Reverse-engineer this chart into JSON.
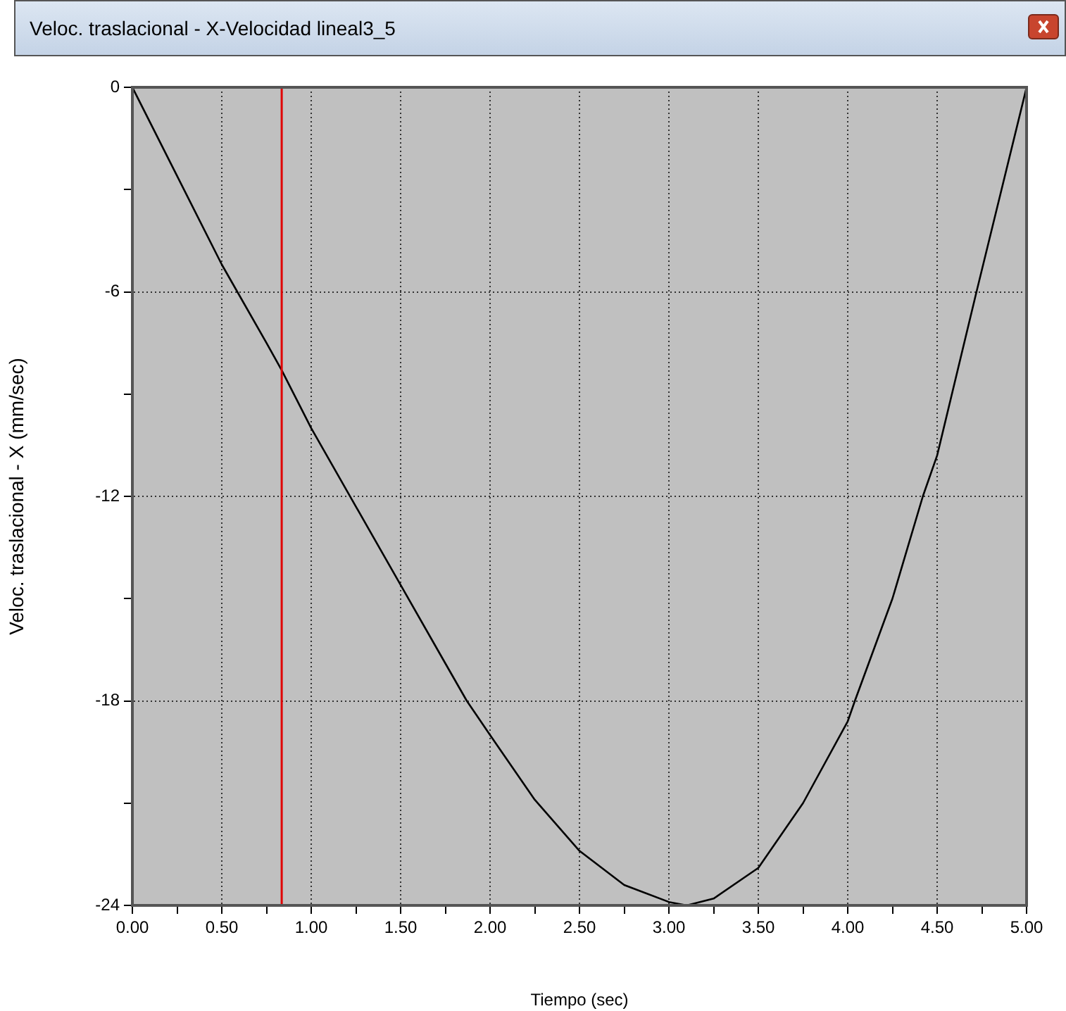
{
  "chart_data": {
    "type": "line",
    "title": "Veloc. traslacional - X-Velocidad lineal3_5",
    "xlabel": "Tiempo (sec)",
    "ylabel": "Veloc. traslacional - X (mm/sec)",
    "x": [
      0,
      0.25,
      0.5,
      0.75,
      0.835,
      1.0,
      1.25,
      1.5,
      1.75,
      1.87,
      2.0,
      2.25,
      2.5,
      2.75,
      3.0,
      3.1,
      3.25,
      3.5,
      3.75,
      4.0,
      4.04,
      4.25,
      4.42,
      4.5,
      4.72,
      5.0
    ],
    "series": [
      {
        "color": "#000000",
        "values": [
          0,
          -2.6,
          -5.2,
          -7.5,
          -8.3,
          -10.0,
          -12.3,
          -14.6,
          -16.9,
          -18,
          -19.0,
          -20.9,
          -22.4,
          -23.4,
          -23.9,
          -24,
          -23.8,
          -22.9,
          -21.0,
          -18.6,
          -18,
          -15.0,
          -12,
          -10.8,
          -6,
          0
        ]
      }
    ],
    "xlim": [
      0,
      5
    ],
    "ylim": [
      -24,
      0
    ],
    "xticks": [
      {
        "value": 0,
        "label": "0.00"
      },
      {
        "value": 0.25,
        "label": null
      },
      {
        "value": 0.5,
        "label": "0.50"
      },
      {
        "value": 0.75,
        "label": null
      },
      {
        "value": 1,
        "label": "1.00"
      },
      {
        "value": 1.25,
        "label": null
      },
      {
        "value": 1.5,
        "label": "1.50"
      },
      {
        "value": 1.75,
        "label": null
      },
      {
        "value": 2,
        "label": "2.00"
      },
      {
        "value": 2.25,
        "label": null
      },
      {
        "value": 2.5,
        "label": "2.50"
      },
      {
        "value": 2.75,
        "label": null
      },
      {
        "value": 3,
        "label": "3.00"
      },
      {
        "value": 3.25,
        "label": null
      },
      {
        "value": 3.5,
        "label": "3.50"
      },
      {
        "value": 3.75,
        "label": null
      },
      {
        "value": 4,
        "label": "4.00"
      },
      {
        "value": 4.25,
        "label": null
      },
      {
        "value": 4.5,
        "label": "4.50"
      },
      {
        "value": 4.75,
        "label": null
      },
      {
        "value": 5,
        "label": "5.00"
      }
    ],
    "yticks": [
      -24,
      {
        "value": -21,
        "label": null
      },
      -18,
      {
        "value": -15,
        "label": null
      },
      -12,
      {
        "value": -9,
        "label": null
      },
      -6,
      {
        "value": -3,
        "label": null
      },
      0
    ],
    "ref_lines": [
      {
        "axis": "x",
        "value": 0.835,
        "color": "#e00000"
      }
    ],
    "grid": true,
    "marker": "none",
    "line_style": "solid",
    "legend": false
  }
}
